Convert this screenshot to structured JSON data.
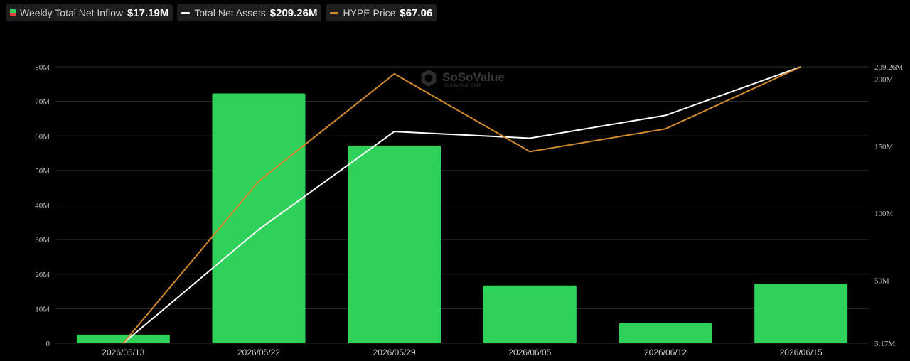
{
  "legend": {
    "inflow": {
      "label": "Weekly Total Net Inflow",
      "value": "$17.19M"
    },
    "assets": {
      "label": "Total Net Assets",
      "value": "$209.26M"
    },
    "price": {
      "label": "HYPE Price",
      "value": "$67.06"
    }
  },
  "watermark": {
    "brand": "SoSoValue",
    "sub": "sosovalue.com"
  },
  "colors": {
    "bar": "#2fd15a",
    "bar_negative": "#e0443c",
    "assets_line": "#ffffff",
    "price_line": "#d38a2f",
    "grid": "#2e2e2e",
    "background": "#000000"
  },
  "chart_data": {
    "type": "bar",
    "categories": [
      "2026/05/13",
      "2026/05/22",
      "2026/05/29",
      "2026/06/05",
      "2026/06/12",
      "2026/06/15"
    ],
    "left_axis": {
      "ticks": [
        0,
        10,
        20,
        30,
        40,
        50,
        60,
        70,
        80
      ],
      "tick_labels": [
        "0",
        "10M",
        "20M",
        "30M",
        "40M",
        "50M",
        "60M",
        "70M",
        "80M"
      ],
      "ylim": [
        0,
        80
      ]
    },
    "right_axis": {
      "ticks": [
        3.17,
        50,
        100,
        150,
        200,
        209.26
      ],
      "tick_labels": [
        "3.17M",
        "50M",
        "100M",
        "150M",
        "200M",
        "209.26M"
      ],
      "ylim": [
        3.17,
        209.26
      ]
    },
    "series": [
      {
        "name": "Weekly Total Net Inflow",
        "type": "bar",
        "axis": "left",
        "values": [
          2.5,
          72.3,
          57.2,
          16.7,
          5.8,
          17.19
        ]
      },
      {
        "name": "Total Net Assets",
        "type": "line",
        "axis": "right",
        "values": [
          3.17,
          88,
          161,
          156,
          173,
          209.26
        ]
      },
      {
        "name": "HYPE Price",
        "type": "line",
        "axis": "right",
        "values": [
          3.17,
          124,
          204,
          146,
          163,
          209.26
        ]
      }
    ],
    "grid": true,
    "legend_position": "top-left"
  }
}
